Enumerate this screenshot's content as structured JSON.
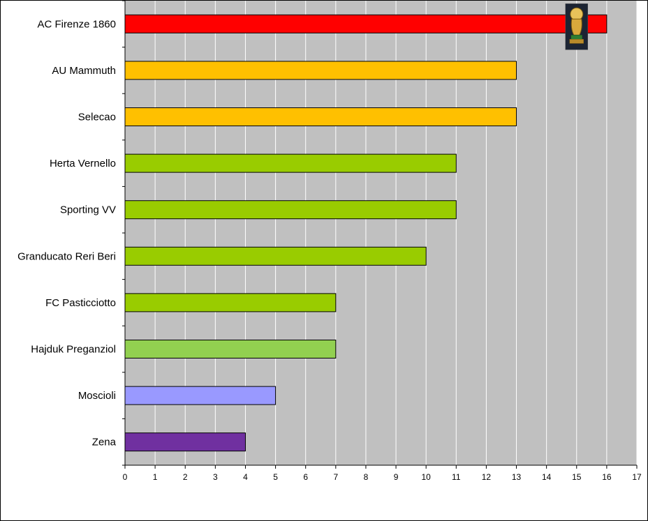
{
  "chart_data": {
    "type": "bar",
    "orientation": "horizontal",
    "title": "",
    "xlabel": "",
    "ylabel": "",
    "xlim": [
      0,
      17
    ],
    "xticks": [
      0,
      1,
      2,
      3,
      4,
      5,
      6,
      7,
      8,
      9,
      10,
      11,
      12,
      13,
      14,
      15,
      16,
      17
    ],
    "grid": true,
    "legend": "none",
    "categories": [
      "AC Firenze 1860",
      "AU Mammuth",
      "Selecao",
      "Herta Vernello",
      "Sporting VV",
      "Granducato Reri Beri",
      "FC Pasticciotto",
      "Hajduk Preganziol",
      "Moscioli",
      "Zena"
    ],
    "values": [
      16,
      13,
      13,
      11,
      11,
      10,
      7,
      7,
      5,
      4
    ],
    "bar_colors": [
      "#ff0000",
      "#ffc000",
      "#ffc000",
      "#99cc00",
      "#99cc00",
      "#99cc00",
      "#99cc00",
      "#92d050",
      "#9999ff",
      "#7030a0"
    ],
    "annotation": {
      "icon": "trophy-icon",
      "at_category": "AC Firenze 1860",
      "x_value": 15
    }
  },
  "colors": {
    "plot_background": "#c0c0c0",
    "gridline": "#ffffff",
    "axis": "#000000",
    "bar_border": "#000000"
  }
}
